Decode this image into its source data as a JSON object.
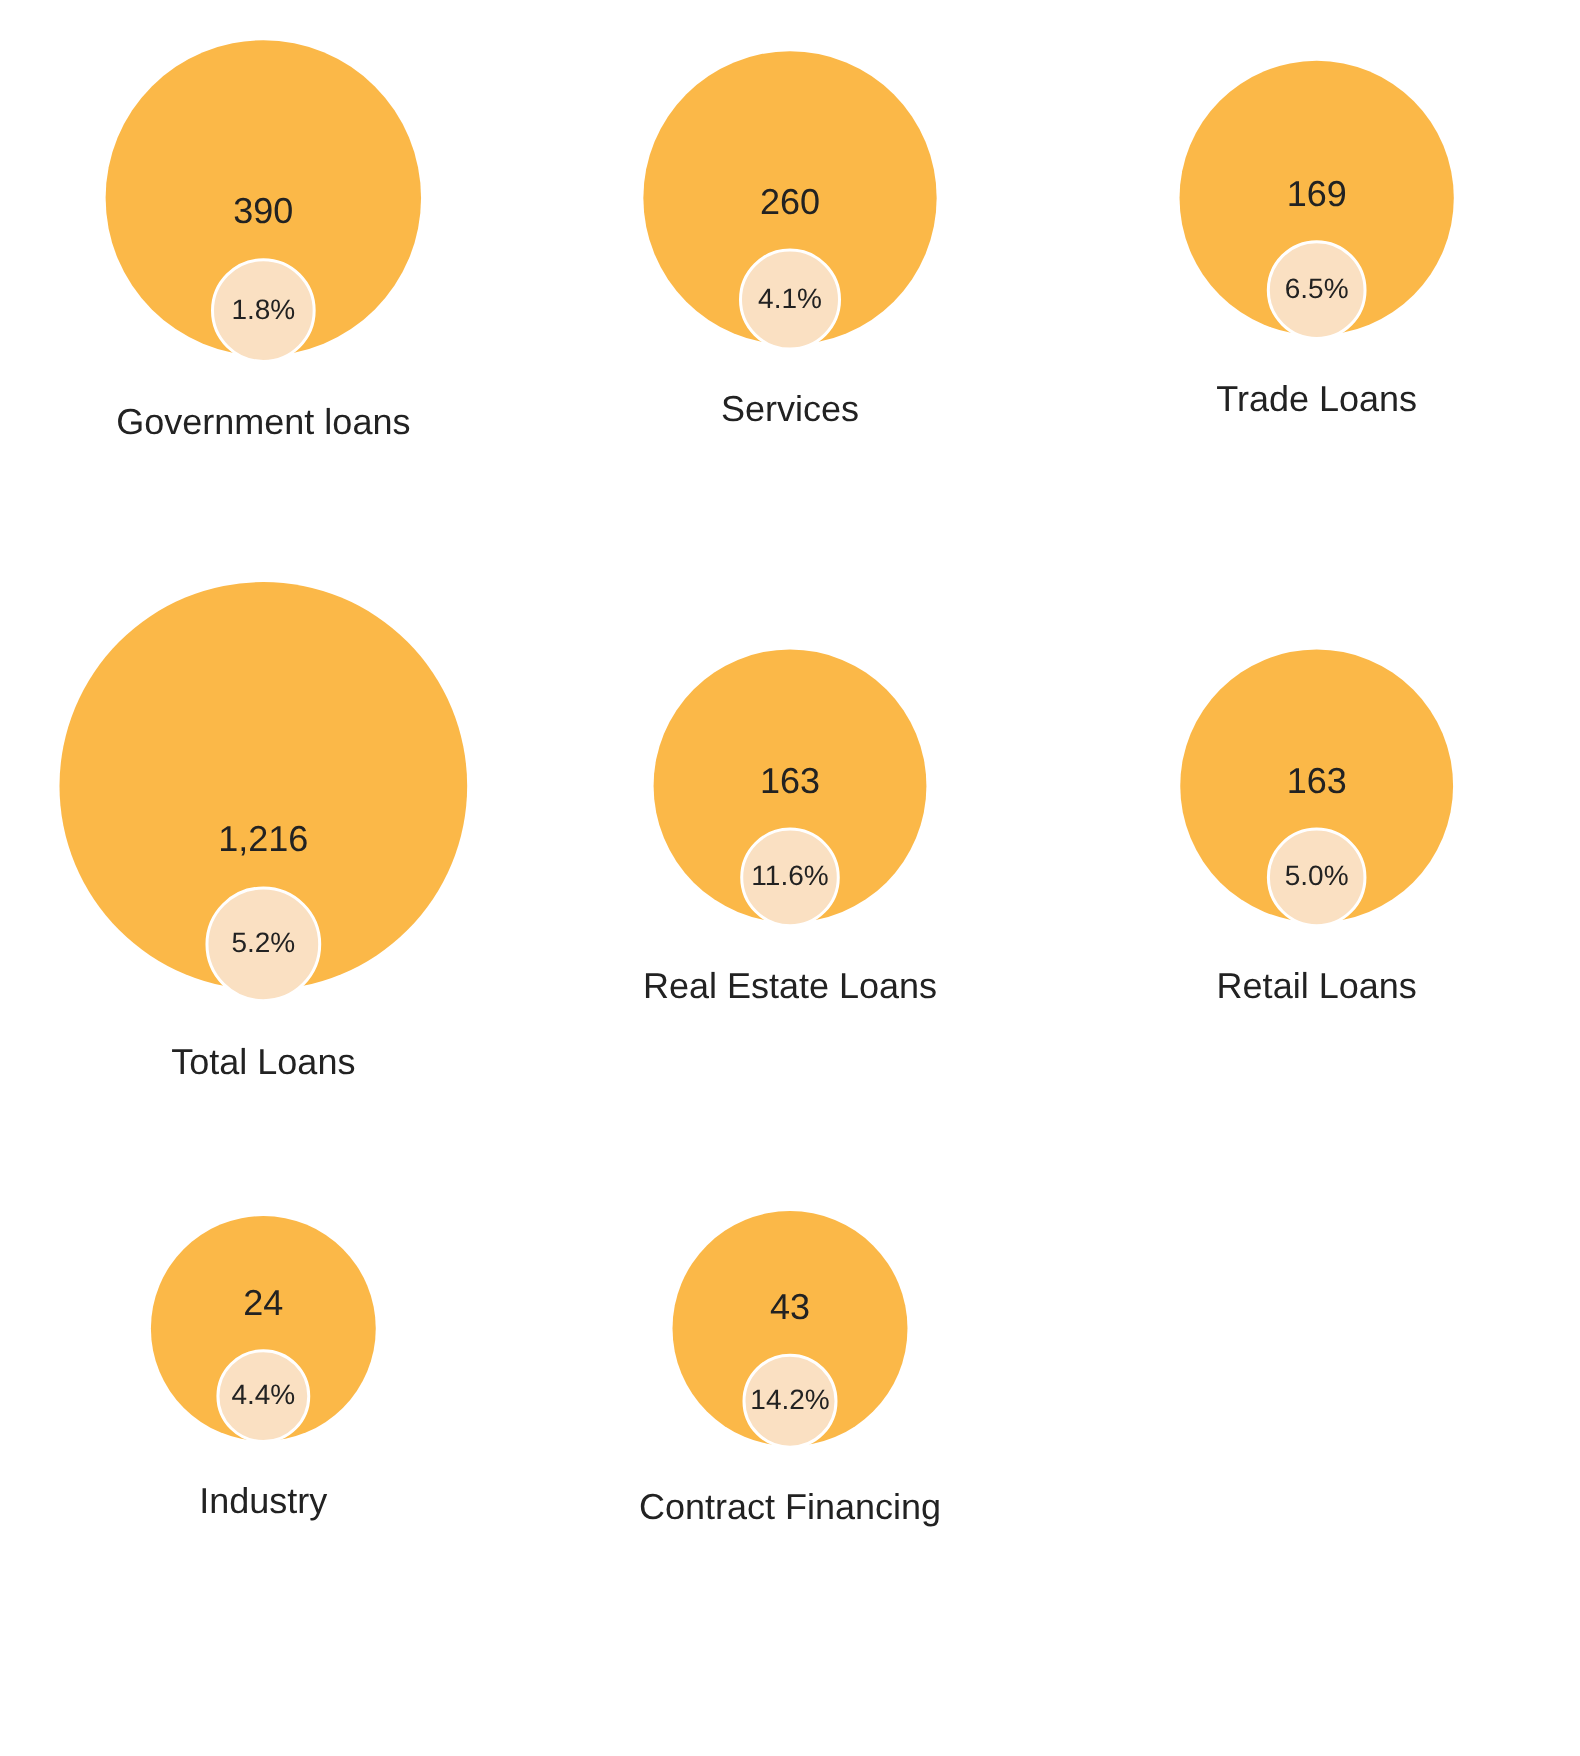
{
  "chart_data": {
    "type": "other",
    "categories": [
      "Government loans",
      "Services",
      "Trade Loans",
      "Total Loans",
      "Real Estate Loans",
      "Retail Loans",
      "Industry",
      "Contract Financing"
    ],
    "series": [
      {
        "color": "#fbb848",
        "values": [
          390,
          260,
          169,
          1216,
          163,
          163,
          24,
          43
        ],
        "value_labels": [
          "390",
          "260",
          "169",
          "1,216",
          "163",
          "163",
          "24",
          "43"
        ]
      },
      {
        "color": "#fae0c2",
        "values": [
          1.8,
          4.1,
          6.5,
          5.2,
          11.6,
          5.0,
          4.4,
          14.2
        ],
        "value_labels": [
          "1.8%",
          "4.1%",
          "6.5%",
          "5.2%",
          "11.6%",
          "5.0%",
          "4.4%",
          "14.2%"
        ]
      }
    ]
  }
}
